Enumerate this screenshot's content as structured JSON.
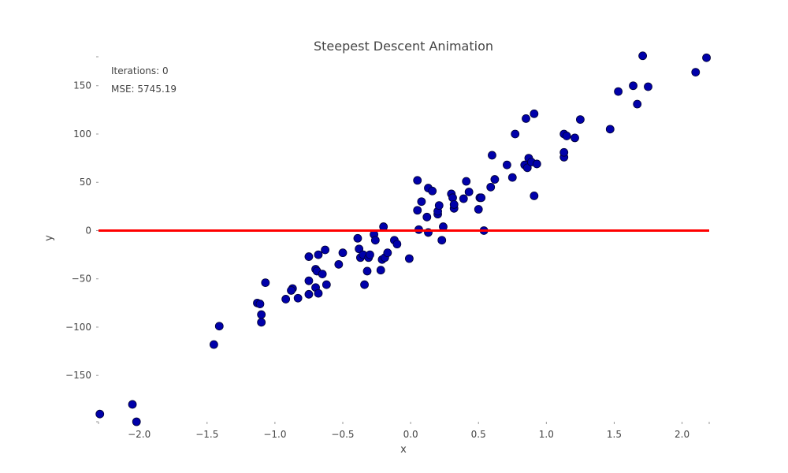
{
  "chart_data": {
    "type": "scatter",
    "title": "Steepest Descent Animation",
    "xlabel": "x",
    "ylabel": "y",
    "xlim": [
      -2.3,
      2.2
    ],
    "ylim": [
      -198,
      180
    ],
    "x_ticks": [
      -2.0,
      -1.5,
      -1.0,
      -0.5,
      0.0,
      0.5,
      1.0,
      1.5,
      2.0
    ],
    "y_ticks": [
      -150,
      -100,
      -50,
      0,
      50,
      100,
      150
    ],
    "x_tick_labels": [
      "−2.0",
      "−1.5",
      "−1.0",
      "−0.5",
      "0.0",
      "0.5",
      "1.0",
      "1.5",
      "2.0"
    ],
    "y_tick_labels": [
      "−150",
      "−100",
      "−50",
      "0",
      "50",
      "100",
      "150"
    ],
    "grid": false,
    "annotations": {
      "iterations": "Iterations: 0",
      "mse": "MSE: 5745.19"
    },
    "colors": {
      "points": "#0000aa",
      "point_edge": "#000033",
      "line": "#ff0000",
      "text": "#444444"
    },
    "fit_line": {
      "slope": 0,
      "intercept": 0
    },
    "points": [
      [
        -2.29,
        -190
      ],
      [
        -2.05,
        -180
      ],
      [
        -2.02,
        -198
      ],
      [
        -1.45,
        -118
      ],
      [
        -1.41,
        -99
      ],
      [
        -1.13,
        -75
      ],
      [
        -1.11,
        -76
      ],
      [
        -1.1,
        -87
      ],
      [
        -1.1,
        -95
      ],
      [
        -1.07,
        -54
      ],
      [
        -0.92,
        -71
      ],
      [
        -0.87,
        -60
      ],
      [
        -0.88,
        -62
      ],
      [
        -0.83,
        -70
      ],
      [
        -0.75,
        -27
      ],
      [
        -0.75,
        -52
      ],
      [
        -0.75,
        -66
      ],
      [
        -0.7,
        -40
      ],
      [
        -0.7,
        -59
      ],
      [
        -0.69,
        -42
      ],
      [
        -0.68,
        -25
      ],
      [
        -0.68,
        -65
      ],
      [
        -0.65,
        -45
      ],
      [
        -0.63,
        -20
      ],
      [
        -0.62,
        -56
      ],
      [
        -0.53,
        -35
      ],
      [
        -0.5,
        -23
      ],
      [
        -0.39,
        -8
      ],
      [
        -0.38,
        -19
      ],
      [
        -0.37,
        -28
      ],
      [
        -0.35,
        -25
      ],
      [
        -0.34,
        -56
      ],
      [
        -0.32,
        -42
      ],
      [
        -0.31,
        -28
      ],
      [
        -0.3,
        -25
      ],
      [
        -0.27,
        -4
      ],
      [
        -0.26,
        -10
      ],
      [
        -0.22,
        -41
      ],
      [
        -0.21,
        -30
      ],
      [
        -0.2,
        4
      ],
      [
        -0.19,
        -28
      ],
      [
        -0.17,
        -23
      ],
      [
        -0.12,
        -10
      ],
      [
        -0.1,
        -14
      ],
      [
        -0.01,
        -29
      ],
      [
        0.05,
        21
      ],
      [
        0.05,
        52
      ],
      [
        0.06,
        1
      ],
      [
        0.08,
        30
      ],
      [
        0.12,
        14
      ],
      [
        0.13,
        44
      ],
      [
        0.13,
        -2
      ],
      [
        0.16,
        41
      ],
      [
        0.2,
        17
      ],
      [
        0.2,
        20
      ],
      [
        0.21,
        26
      ],
      [
        0.23,
        -10
      ],
      [
        0.24,
        4
      ],
      [
        0.3,
        38
      ],
      [
        0.31,
        34
      ],
      [
        0.32,
        23
      ],
      [
        0.32,
        27
      ],
      [
        0.39,
        33
      ],
      [
        0.41,
        51
      ],
      [
        0.43,
        40
      ],
      [
        0.5,
        22
      ],
      [
        0.51,
        34
      ],
      [
        0.52,
        34
      ],
      [
        0.54,
        0
      ],
      [
        0.59,
        45
      ],
      [
        0.6,
        78
      ],
      [
        0.62,
        53
      ],
      [
        0.71,
        68
      ],
      [
        0.75,
        55
      ],
      [
        0.77,
        100
      ],
      [
        0.84,
        68
      ],
      [
        0.85,
        116
      ],
      [
        0.86,
        65
      ],
      [
        0.87,
        75
      ],
      [
        0.89,
        71
      ],
      [
        0.91,
        36
      ],
      [
        0.91,
        121
      ],
      [
        0.93,
        69
      ],
      [
        1.13,
        100
      ],
      [
        1.13,
        76
      ],
      [
        1.13,
        81
      ],
      [
        1.15,
        98
      ],
      [
        1.21,
        96
      ],
      [
        1.25,
        115
      ],
      [
        1.47,
        105
      ],
      [
        1.53,
        144
      ],
      [
        1.64,
        150
      ],
      [
        1.67,
        131
      ],
      [
        1.71,
        181
      ],
      [
        1.75,
        149
      ],
      [
        2.1,
        164
      ],
      [
        2.18,
        179
      ]
    ]
  }
}
